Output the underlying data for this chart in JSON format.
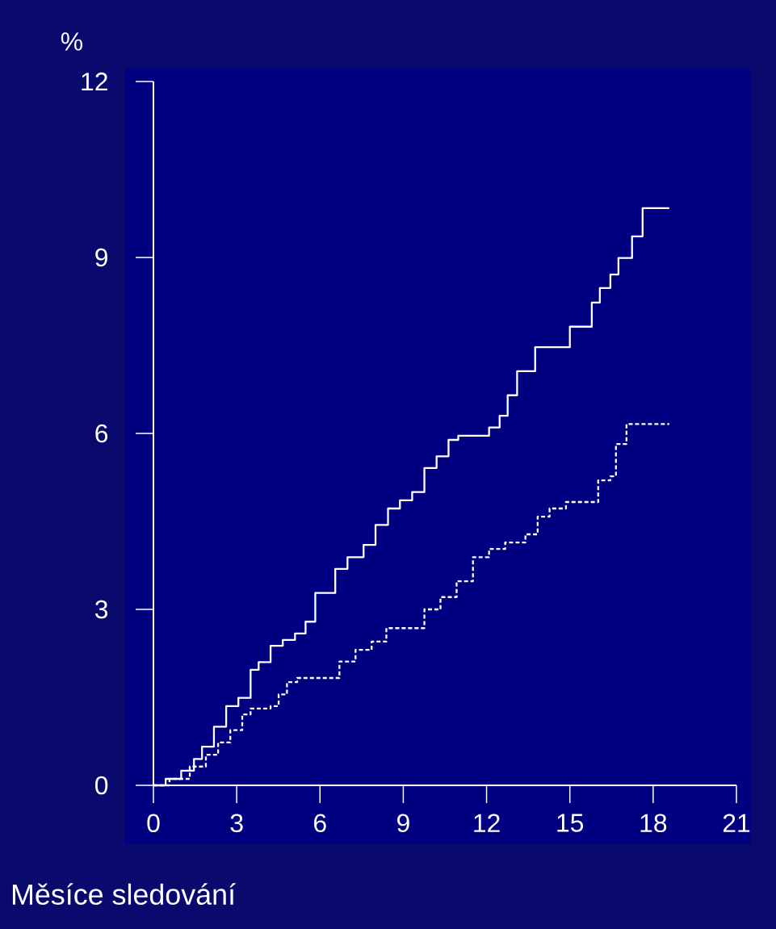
{
  "chart_data": {
    "type": "step",
    "xlabel": "Měsíce sledování",
    "ylabel": "%",
    "xlim": [
      0,
      21
    ],
    "xticks": [
      0,
      3,
      6,
      9,
      12,
      15,
      18,
      21
    ],
    "ylim": [
      0,
      12
    ],
    "yticks": [
      0,
      3,
      6,
      9,
      12
    ],
    "grid": false,
    "marker": "none",
    "series": [
      {
        "color": "#ffffff",
        "line_style": "solid",
        "x": [
          0,
          0.44,
          1.0,
          1.46,
          1.75,
          2.18,
          2.62,
          3.06,
          3.5,
          3.79,
          4.22,
          4.66,
          5.1,
          5.48,
          5.83,
          6.26,
          6.55,
          6.99,
          7.57,
          8.0,
          8.45,
          8.88,
          9.32,
          9.76,
          10.2,
          10.63,
          10.98,
          11.65,
          12.09,
          12.47,
          12.76,
          13.1,
          13.75,
          14.71,
          15.0,
          15.73,
          15.79,
          16.08,
          16.46,
          16.75,
          17.19,
          17.24,
          17.62,
          18.06,
          18.58
        ],
        "values": [
          0,
          0.11,
          0.25,
          0.45,
          0.66,
          1.0,
          1.35,
          1.49,
          1.97,
          2.1,
          2.38,
          2.48,
          2.59,
          2.79,
          3.28,
          3.28,
          3.69,
          3.89,
          4.1,
          4.44,
          4.72,
          4.86,
          5.0,
          5.41,
          5.61,
          5.89,
          5.96,
          5.96,
          6.1,
          6.3,
          6.65,
          7.06,
          7.47,
          7.47,
          7.82,
          7.82,
          8.23,
          8.48,
          8.71,
          8.99,
          8.99,
          9.36,
          9.84,
          9.84,
          9.84
        ]
      },
      {
        "color": "#ffffff",
        "line_style": "dashed",
        "x": [
          0,
          0.58,
          1.31,
          1.89,
          2.33,
          2.77,
          3.2,
          3.5,
          4.22,
          4.51,
          4.81,
          5.18,
          5.97,
          6.7,
          7.28,
          7.86,
          8.39,
          9.32,
          9.76,
          10.34,
          10.92,
          11.51,
          12.09,
          12.67,
          13.4,
          13.84,
          14.27,
          14.86,
          15.73,
          16.02,
          16.46,
          16.66,
          17.04,
          18.58
        ],
        "values": [
          0,
          0.11,
          0.32,
          0.52,
          0.73,
          0.94,
          1.21,
          1.31,
          1.35,
          1.55,
          1.76,
          1.83,
          1.83,
          2.11,
          2.31,
          2.45,
          2.68,
          2.68,
          3.0,
          3.21,
          3.48,
          3.89,
          4.03,
          4.14,
          4.28,
          4.58,
          4.72,
          4.83,
          4.83,
          5.2,
          5.27,
          5.82,
          6.16,
          6.16
        ]
      }
    ]
  }
}
